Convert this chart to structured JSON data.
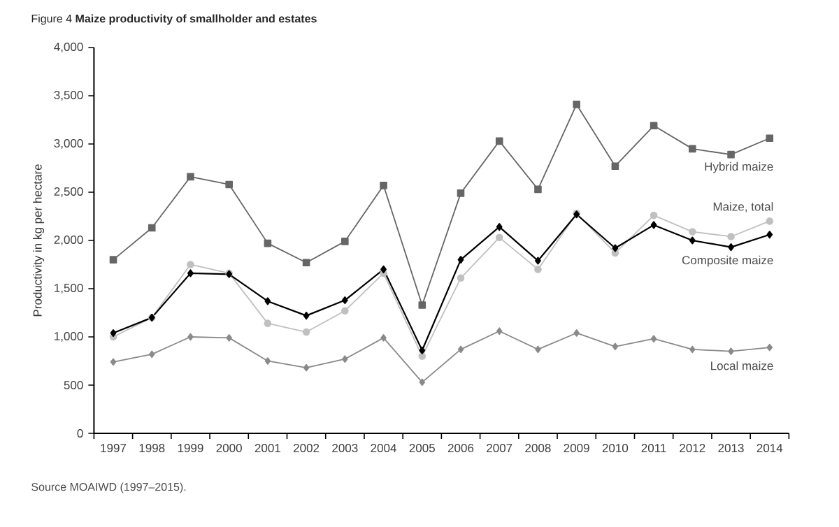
{
  "chart_data": {
    "type": "line",
    "title": "Figure 4 **Maize productivity of smallholder and estates**",
    "ylabel": "Productivity in kg per hectare",
    "categories": [
      "1997",
      "1998",
      "1999",
      "2000",
      "2001",
      "2002",
      "2003",
      "2004",
      "2005",
      "2006",
      "2007",
      "2008",
      "2009",
      "2010",
      "2011",
      "2012",
      "2013",
      "2014"
    ],
    "series": [
      {
        "name": "Hybrid maize",
        "color": "#666666",
        "marker": "square",
        "values": [
          1800,
          2130,
          2660,
          2580,
          1970,
          1770,
          1990,
          2570,
          1330,
          2490,
          3030,
          2530,
          3410,
          2770,
          3190,
          2950,
          2890,
          3060
        ]
      },
      {
        "name": "Maize, total",
        "color": "#c0c0c0",
        "marker": "circle",
        "values": [
          1000,
          1200,
          1750,
          1660,
          1140,
          1050,
          1270,
          1660,
          800,
          1610,
          2030,
          1700,
          2280,
          1870,
          2260,
          2090,
          2040,
          2200
        ]
      },
      {
        "name": "Composite maize",
        "color": "#000000",
        "marker": "diamond",
        "values": [
          1040,
          1200,
          1660,
          1650,
          1370,
          1220,
          1380,
          1700,
          860,
          1800,
          2140,
          1790,
          2270,
          1920,
          2160,
          2000,
          1930,
          2060
        ]
      },
      {
        "name": "Local maize",
        "color": "#8a8a8a",
        "marker": "diamond",
        "values": [
          740,
          820,
          1000,
          990,
          750,
          680,
          770,
          990,
          530,
          870,
          1060,
          870,
          1040,
          900,
          980,
          870,
          850,
          890
        ]
      }
    ],
    "ylim": [
      0,
      4000
    ],
    "yticks": [
      0,
      500,
      {
        "value": 1000,
        "label": "1,000"
      },
      {
        "value": 1500,
        "label": "1,500"
      },
      {
        "value": 2000,
        "label": "2,000"
      },
      {
        "value": 2500,
        "label": "2,500"
      },
      {
        "value": 3000,
        "label": "3,000"
      },
      {
        "value": 3500,
        "label": "3,500"
      },
      {
        "value": 4000,
        "label": "4,000"
      }
    ],
    "grid": false,
    "line_style": "solid",
    "annotations": [
      "Source MOAIWD (1997–2015)."
    ]
  }
}
